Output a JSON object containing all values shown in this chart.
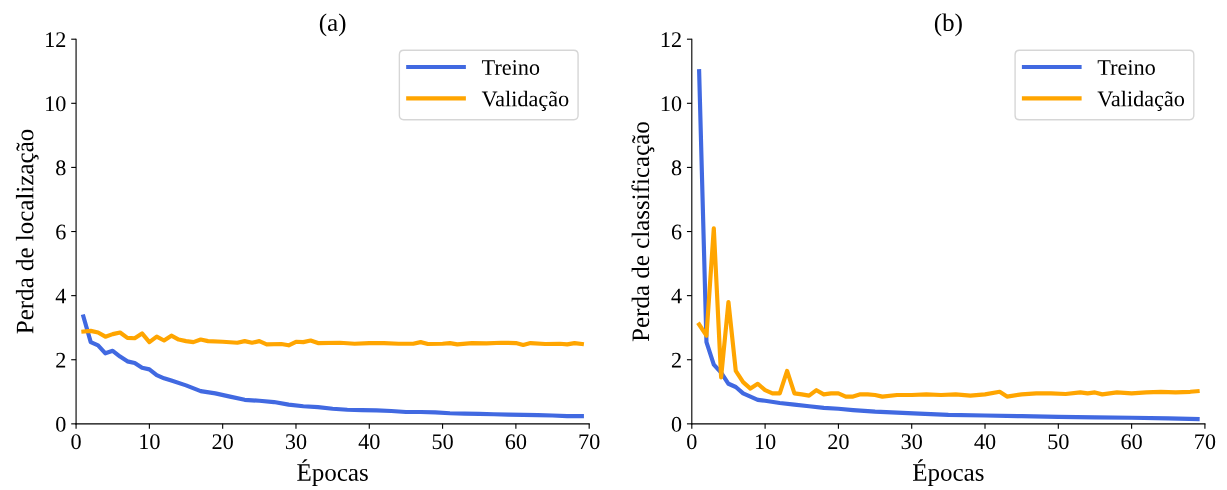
{
  "chart_data": [
    {
      "type": "line",
      "title": "(a)",
      "xlabel": "Épocas",
      "ylabel": "Perda de localização",
      "xlim": [
        0,
        70
      ],
      "ylim": [
        0,
        12
      ],
      "xticks": [
        0,
        10,
        20,
        30,
        40,
        50,
        60,
        70
      ],
      "yticks": [
        0,
        2,
        4,
        6,
        8,
        10,
        12
      ],
      "grid": false,
      "legend": "top right",
      "series": [
        {
          "name": "Treino",
          "color": "#4169e1",
          "x": [
            1,
            2,
            3,
            4,
            5,
            6,
            7,
            8,
            9,
            10,
            11,
            12,
            13,
            15,
            17,
            19,
            21,
            23,
            25,
            27,
            29,
            31,
            33,
            35,
            37,
            39,
            41,
            43,
            45,
            47,
            49,
            51,
            53,
            55,
            57,
            59,
            61,
            63,
            65,
            67,
            69
          ],
          "values": [
            3.35,
            2.55,
            2.45,
            2.2,
            2.28,
            2.1,
            1.95,
            1.9,
            1.75,
            1.7,
            1.52,
            1.42,
            1.35,
            1.2,
            1.02,
            0.95,
            0.85,
            0.75,
            0.72,
            0.68,
            0.6,
            0.55,
            0.52,
            0.47,
            0.44,
            0.43,
            0.42,
            0.4,
            0.37,
            0.37,
            0.36,
            0.33,
            0.32,
            0.31,
            0.3,
            0.29,
            0.28,
            0.27,
            0.26,
            0.24,
            0.24
          ]
        },
        {
          "name": "Validação",
          "color": "#ffa500",
          "x": [
            1,
            2,
            3,
            4,
            5,
            6,
            7,
            8,
            9,
            10,
            11,
            12,
            13,
            14,
            15,
            16,
            17,
            18,
            20,
            22,
            23,
            24,
            25,
            26,
            28,
            29,
            30,
            31,
            32,
            33,
            36,
            38,
            40,
            42,
            44,
            46,
            47,
            48,
            50,
            51,
            52,
            54,
            56,
            58,
            60,
            61,
            62,
            64,
            66,
            67,
            68,
            69
          ],
          "values": [
            2.88,
            2.9,
            2.85,
            2.72,
            2.8,
            2.85,
            2.68,
            2.67,
            2.82,
            2.55,
            2.72,
            2.6,
            2.75,
            2.63,
            2.58,
            2.55,
            2.63,
            2.58,
            2.56,
            2.53,
            2.58,
            2.53,
            2.58,
            2.48,
            2.49,
            2.45,
            2.56,
            2.55,
            2.6,
            2.52,
            2.53,
            2.5,
            2.52,
            2.52,
            2.5,
            2.5,
            2.55,
            2.49,
            2.5,
            2.52,
            2.48,
            2.52,
            2.51,
            2.53,
            2.52,
            2.46,
            2.52,
            2.49,
            2.5,
            2.48,
            2.52,
            2.49
          ]
        }
      ]
    },
    {
      "type": "line",
      "title": "(b)",
      "xlabel": "Épocas",
      "ylabel": "Perda de classificação",
      "xlim": [
        0,
        70
      ],
      "ylim": [
        0,
        12
      ],
      "xticks": [
        0,
        10,
        20,
        30,
        40,
        50,
        60,
        70
      ],
      "yticks": [
        0,
        2,
        4,
        6,
        8,
        10,
        12
      ],
      "grid": false,
      "legend": "top right",
      "series": [
        {
          "name": "Treino",
          "color": "#4169e1",
          "x": [
            1,
            2,
            3,
            4,
            5,
            6,
            7,
            8,
            9,
            10,
            12,
            14,
            16,
            18,
            20,
            22,
            25,
            28,
            31,
            35,
            40,
            45,
            50,
            55,
            60,
            65,
            69
          ],
          "values": [
            11.0,
            2.55,
            1.85,
            1.6,
            1.25,
            1.15,
            0.95,
            0.85,
            0.75,
            0.72,
            0.65,
            0.6,
            0.55,
            0.5,
            0.47,
            0.43,
            0.38,
            0.35,
            0.32,
            0.28,
            0.26,
            0.24,
            0.22,
            0.2,
            0.19,
            0.17,
            0.15
          ]
        },
        {
          "name": "Validação",
          "color": "#ffa500",
          "x": [
            1,
            2,
            3,
            4,
            5,
            6,
            7,
            8,
            9,
            10,
            11,
            12,
            13,
            14,
            15,
            16,
            17,
            18,
            19,
            20,
            21,
            22,
            23,
            24,
            25,
            26,
            28,
            30,
            32,
            34,
            36,
            38,
            40,
            42,
            43,
            45,
            47,
            49,
            51,
            53,
            54,
            55,
            56,
            58,
            60,
            62,
            64,
            66,
            68,
            69
          ],
          "values": [
            3.1,
            2.75,
            6.1,
            1.45,
            3.8,
            1.65,
            1.3,
            1.1,
            1.25,
            1.05,
            0.95,
            0.95,
            1.65,
            0.95,
            0.92,
            0.88,
            1.05,
            0.92,
            0.95,
            0.95,
            0.85,
            0.85,
            0.92,
            0.92,
            0.9,
            0.85,
            0.9,
            0.9,
            0.92,
            0.9,
            0.92,
            0.88,
            0.92,
            1.0,
            0.85,
            0.92,
            0.95,
            0.95,
            0.93,
            0.98,
            0.95,
            0.98,
            0.92,
            0.98,
            0.95,
            0.98,
            1.0,
            0.98,
            1.0,
            1.02
          ]
        }
      ]
    }
  ]
}
